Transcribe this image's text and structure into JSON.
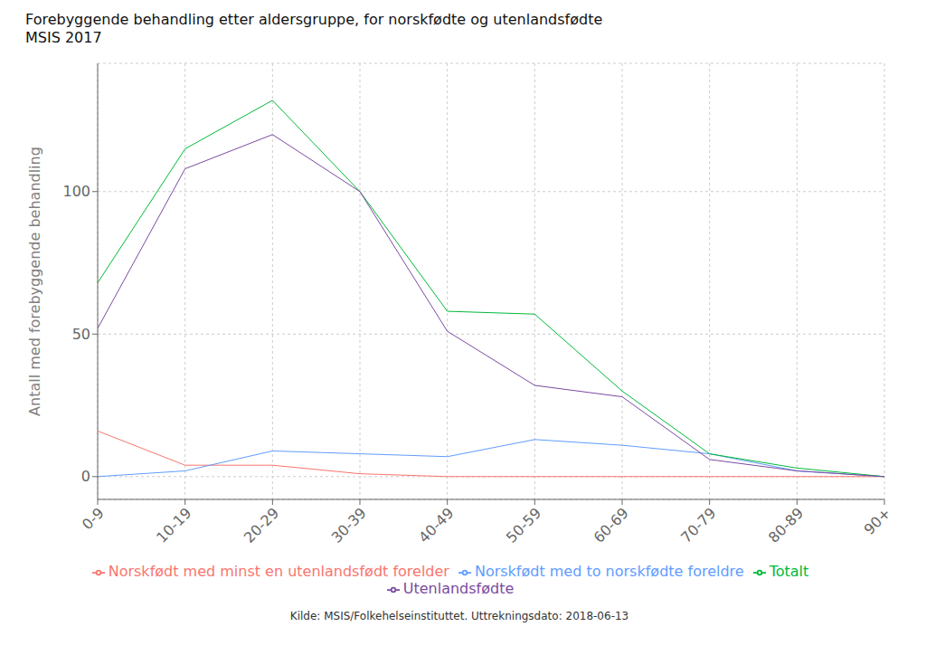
{
  "chart_data": {
    "type": "line",
    "title": "Forebyggende behandling etter aldersgruppe, for norskfødte og utenlandsfødte\nMSIS 2017",
    "ylabel": "Antall med forebyggende behandling",
    "source": "Kilde: MSIS/Folkehelseinstituttet. Uttrekningsdato: 2018-06-13",
    "categories": [
      "0-9",
      "10-19",
      "20-29",
      "30-39",
      "40-49",
      "50-59",
      "60-69",
      "70-79",
      "80-89",
      "90+"
    ],
    "series": [
      {
        "name": "Norskfødt med minst en utenlandsfødt forelder",
        "color": "#F8766D",
        "values": [
          16,
          4,
          4,
          1,
          0,
          0,
          0,
          0,
          0,
          0
        ]
      },
      {
        "name": "Norskfødt med to norskfødte foreldre",
        "color": "#619CFF",
        "values": [
          0,
          2,
          9,
          8,
          7,
          13,
          11,
          8,
          2,
          0
        ]
      },
      {
        "name": "Totalt",
        "color": "#00BA38",
        "values": [
          68,
          115,
          132,
          100,
          58,
          57,
          30,
          8,
          3,
          0
        ]
      },
      {
        "name": "Utenlandsfødte",
        "color": "#7B4BA0",
        "values": [
          52,
          108,
          120,
          100,
          51,
          32,
          28,
          6,
          2,
          0
        ]
      }
    ],
    "ylim": [
      -8,
      145
    ],
    "yticks": [
      0,
      50,
      100
    ],
    "grid": true,
    "legend": "bottom",
    "line_style": "solid",
    "marker": "none"
  }
}
